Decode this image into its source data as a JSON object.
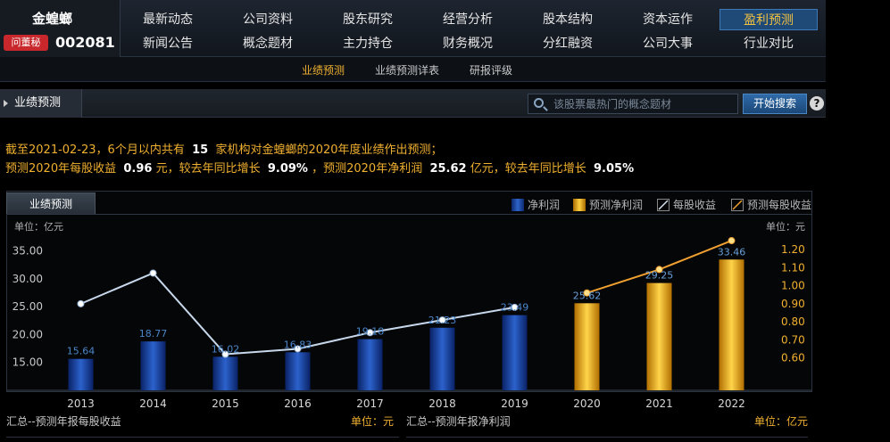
{
  "stock": {
    "name": "金蝗螂",
    "ask_badge": "问董秘",
    "code": "002081"
  },
  "nav": {
    "row1": [
      "最新动态",
      "公司资料",
      "股东研究",
      "经营分析",
      "股本结构",
      "资本运作",
      "盈利预测"
    ],
    "row2": [
      "新闻公告",
      "概念题材",
      "主力持仓",
      "财务概况",
      "分红融资",
      "公司大事",
      "行业对比"
    ],
    "active": "盈利预测"
  },
  "subnav": {
    "items": [
      "业绩预测",
      "业绩预测详表",
      "研报评级"
    ],
    "active": "业绩预测"
  },
  "section": {
    "title": "业绩预测"
  },
  "search": {
    "placeholder": "该股票最热门的概念题材",
    "button": "开始搜索",
    "help": "?"
  },
  "summary": {
    "l1_a": "截至2021-02-23，6个月以内共有",
    "l1_count": "15",
    "l1_b": "家机构对金蝗螂的2020年度业绩作出预测；",
    "l2_a": "预测2020年每股收益",
    "l2_eps": "0.96",
    "l2_b": "元，较去年同比增长",
    "l2_eps_growth": "9.09%",
    "l2_c": "，预测2020年净利润",
    "l2_np": "25.62",
    "l2_d": "亿元，较去年同比增长",
    "l2_np_growth": "9.05%"
  },
  "chart_tab": "业绩预测",
  "legend": [
    "净利润",
    "预测净利润",
    "每股收益",
    "预测每股收益"
  ],
  "colors": {
    "actual_bar": "#1f4ea8",
    "forecast_bar": "#f0b020",
    "eps_line": "#c8d8ec",
    "forecast_line": "#f0a030"
  },
  "chart_data": {
    "type": "bar",
    "categories": [
      "2013",
      "2014",
      "2015",
      "2016",
      "2017",
      "2018",
      "2019",
      "2020",
      "2021",
      "2022"
    ],
    "series": [
      {
        "name": "净利润",
        "values": [
          15.64,
          18.77,
          16.02,
          16.83,
          19.18,
          21.23,
          23.49,
          null,
          null,
          null
        ]
      },
      {
        "name": "预测净利润",
        "values": [
          null,
          null,
          null,
          null,
          null,
          null,
          null,
          25.62,
          29.25,
          33.46
        ]
      },
      {
        "name": "每股收益",
        "values": [
          0.9,
          1.07,
          0.62,
          0.65,
          0.74,
          0.81,
          0.88,
          null,
          null,
          null
        ]
      },
      {
        "name": "预测每股收益",
        "values": [
          null,
          null,
          null,
          null,
          null,
          null,
          null,
          0.96,
          1.09,
          1.25
        ]
      }
    ],
    "left_unit": "单位：亿元",
    "right_unit": "单位：元",
    "left_ticks": [
      "15.00",
      "20.00",
      "25.00",
      "30.00",
      "35.00"
    ],
    "right_ticks": [
      "0.60",
      "0.70",
      "0.80",
      "0.90",
      "1.00",
      "1.10",
      "1.20"
    ],
    "left_ylim": [
      10,
      37.5
    ],
    "right_ylim": [
      0.42,
      1.27
    ]
  },
  "bottom": {
    "left_title": "汇总--预测年报每股收益",
    "left_unit": "单位：元",
    "right_title": "汇总--预测年报净利润",
    "right_unit": "单位：亿元"
  }
}
